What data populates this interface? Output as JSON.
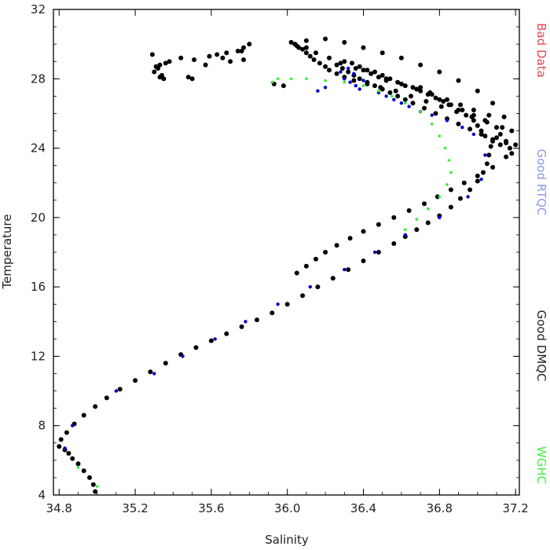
{
  "chart_data": {
    "type": "scatter",
    "xlabel": "Salinity",
    "ylabel": "Temperature",
    "xlim": [
      34.77,
      37.22
    ],
    "ylim": [
      4,
      32
    ],
    "xticks": [
      34.8,
      35.2,
      35.6,
      36.0,
      36.4,
      36.8,
      37.2
    ],
    "yticks": [
      4,
      8,
      12,
      16,
      20,
      24,
      28,
      32
    ],
    "xtick_labels": [
      "34.8",
      "35.2",
      "35.6",
      "36.0",
      "36.4",
      "36.8",
      "37.2"
    ],
    "ytick_labels": [
      "4",
      "8",
      "12",
      "16",
      "20",
      "24",
      "28",
      "32"
    ],
    "grid": false,
    "legend_placement": "right-side, vertical text",
    "legend": [
      {
        "label": "Bad Data",
        "color": "#e8474f"
      },
      {
        "label": "Good RTQC",
        "color": "#8f96e8"
      },
      {
        "label": "Good DMQC",
        "color": "#222222"
      },
      {
        "label": "WGHC",
        "color": "#3ef03e"
      }
    ],
    "series": [
      {
        "name": "Good DMQC",
        "color": "#000000",
        "x": [
          34.99,
          34.98,
          34.96,
          34.93,
          34.9,
          34.87,
          34.85,
          34.83,
          34.8,
          34.81,
          34.84,
          34.88,
          34.93,
          34.99,
          35.05,
          35.12,
          35.2,
          35.28,
          35.36,
          35.44,
          35.52,
          35.6,
          35.68,
          35.76,
          35.84,
          35.92,
          36.0,
          36.08,
          36.16,
          36.24,
          36.32,
          36.4,
          36.48,
          36.56,
          36.62,
          36.68,
          36.74,
          36.8,
          36.86,
          36.91,
          36.96,
          37.0,
          37.03,
          37.05,
          37.06,
          37.07,
          37.1,
          37.15,
          37.18,
          37.13,
          37.05,
          36.97,
          36.89,
          36.81,
          36.73,
          36.65,
          36.57,
          36.49,
          36.42,
          36.35,
          36.3,
          36.26,
          36.22,
          36.2,
          36.17,
          36.14,
          36.12,
          36.1,
          36.08,
          36.06,
          36.05,
          36.04,
          36.02,
          36.1,
          36.2,
          36.3,
          36.4,
          36.5,
          36.6,
          36.7,
          36.8,
          36.9,
          37.0,
          37.08,
          37.14,
          37.18,
          37.2,
          37.15,
          37.08,
          37.0,
          36.93,
          36.86,
          36.79,
          36.72,
          36.64,
          36.56,
          36.48,
          36.4,
          36.33,
          36.26,
          36.2,
          36.15,
          36.1,
          36.05,
          35.98,
          35.93,
          35.8,
          35.77,
          35.74,
          35.68,
          35.63,
          35.59,
          35.51,
          35.44,
          35.38,
          35.36,
          35.33,
          35.31,
          35.29,
          35.32,
          35.3,
          35.34,
          35.33,
          35.35,
          35.48,
          35.5,
          35.76,
          35.77,
          35.66,
          35.7,
          35.57,
          36.7,
          36.75,
          36.8,
          36.85,
          36.92,
          36.98,
          37.04,
          37.1,
          37.12,
          37.15,
          37.17,
          37.06,
          36.98,
          36.91,
          36.84,
          36.76,
          36.68,
          36.6,
          36.52,
          36.44,
          36.36,
          36.28,
          36.22,
          36.15,
          36.1,
          36.26,
          36.29,
          36.32,
          36.35,
          36.38,
          36.42,
          36.46,
          36.5,
          36.54,
          36.58,
          36.62,
          36.66,
          36.72,
          36.78,
          36.84,
          36.9,
          36.96,
          37.02,
          37.08,
          37.12,
          36.4,
          36.44,
          36.48,
          36.52,
          36.3,
          36.34,
          36.38,
          36.42,
          36.46,
          36.5,
          36.54,
          36.58,
          36.62,
          36.66,
          36.7,
          36.74,
          36.78,
          36.82,
          36.86,
          36.9,
          36.94,
          36.98,
          37.0,
          37.02,
          37.04,
          37.08
        ],
        "y": [
          4.2,
          4.6,
          5.0,
          5.4,
          5.8,
          6.1,
          6.4,
          6.6,
          6.8,
          7.2,
          7.6,
          8.1,
          8.6,
          9.1,
          9.6,
          10.1,
          10.6,
          11.1,
          11.6,
          12.1,
          12.5,
          12.9,
          13.3,
          13.7,
          14.1,
          14.5,
          15.0,
          15.5,
          16.0,
          16.5,
          17.0,
          17.5,
          18.0,
          18.5,
          18.9,
          19.3,
          19.7,
          20.1,
          20.6,
          21.1,
          21.6,
          22.1,
          22.6,
          23.1,
          23.6,
          24.1,
          24.6,
          24.3,
          23.7,
          25.2,
          25.5,
          25.8,
          26.1,
          26.4,
          26.7,
          27.0,
          27.3,
          27.5,
          27.7,
          27.9,
          28.1,
          28.3,
          28.5,
          28.7,
          28.9,
          29.1,
          29.3,
          29.5,
          29.7,
          29.8,
          29.9,
          30.0,
          30.1,
          30.2,
          30.3,
          30.1,
          29.8,
          29.5,
          29.2,
          28.8,
          28.4,
          27.9,
          27.3,
          26.6,
          25.8,
          25.0,
          24.2,
          23.5,
          22.9,
          22.4,
          22.0,
          21.6,
          21.2,
          20.8,
          20.4,
          20.0,
          19.6,
          19.2,
          18.8,
          18.4,
          18.0,
          17.6,
          17.2,
          16.8,
          27.6,
          27.7,
          30.0,
          29.8,
          29.6,
          29.5,
          29.4,
          29.3,
          29.1,
          29.2,
          29.0,
          28.9,
          28.8,
          28.7,
          29.4,
          28.6,
          28.4,
          28.2,
          28.1,
          28.0,
          28.1,
          28.0,
          29.6,
          29.1,
          29.2,
          29.0,
          28.8,
          27.5,
          27.2,
          26.8,
          26.5,
          26.2,
          25.9,
          25.6,
          25.2,
          24.8,
          24.4,
          24.0,
          25.9,
          26.2,
          26.5,
          26.8,
          27.1,
          27.4,
          27.7,
          28.0,
          28.3,
          28.6,
          28.9,
          29.2,
          29.5,
          29.8,
          28.8,
          28.6,
          28.4,
          28.2,
          28.0,
          27.8,
          27.6,
          27.4,
          27.2,
          27.0,
          26.8,
          26.6,
          26.3,
          26.0,
          25.7,
          25.4,
          25.1,
          24.8,
          24.5,
          24.2,
          28.5,
          28.3,
          28.1,
          27.9,
          29.0,
          28.9,
          28.7,
          28.5,
          28.4,
          28.2,
          28.0,
          27.8,
          27.6,
          27.5,
          27.3,
          27.1,
          26.9,
          26.7,
          26.5,
          26.2,
          25.9,
          25.6,
          25.3,
          25.0,
          24.7,
          24.4
        ]
      },
      {
        "name": "Good RTQC",
        "color": "#0000cc",
        "x": [
          34.83,
          34.87,
          35.1,
          35.3,
          35.45,
          35.62,
          35.78,
          35.95,
          36.12,
          36.3,
          36.46,
          36.62,
          36.8,
          36.95,
          37.02,
          37.04,
          36.3,
          36.33,
          36.36,
          36.38,
          36.4,
          36.35,
          36.32,
          36.28,
          36.2,
          36.16,
          36.48,
          36.52,
          36.56,
          36.6,
          36.64,
          36.7,
          36.76,
          36.84,
          36.92,
          36.98
        ],
        "y": [
          6.7,
          8.0,
          10.0,
          11.0,
          12.0,
          13.0,
          14.0,
          15.0,
          16.0,
          17.0,
          18.0,
          19.0,
          20.0,
          21.2,
          22.2,
          23.6,
          28.0,
          27.8,
          27.6,
          27.4,
          27.9,
          28.3,
          28.6,
          28.4,
          27.5,
          27.3,
          27.2,
          27.0,
          26.8,
          26.6,
          26.4,
          26.1,
          25.9,
          25.6,
          25.2,
          24.8
        ]
      },
      {
        "name": "WGHC",
        "color": "#33ee33",
        "x": [
          34.9,
          35.0,
          36.62,
          36.68,
          36.74,
          36.8,
          36.84,
          36.86,
          36.85,
          36.83,
          36.8,
          36.76,
          36.7,
          36.62,
          36.55,
          36.48,
          36.4,
          36.3,
          36.2,
          36.1,
          36.02,
          35.95,
          35.92
        ],
        "y": [
          5.6,
          4.5,
          19.3,
          19.9,
          20.5,
          21.2,
          21.9,
          22.6,
          23.3,
          24.0,
          24.7,
          25.4,
          26.1,
          26.6,
          27.0,
          27.3,
          27.6,
          27.8,
          27.9,
          28.0,
          28.0,
          28.0,
          27.8
        ]
      }
    ]
  }
}
